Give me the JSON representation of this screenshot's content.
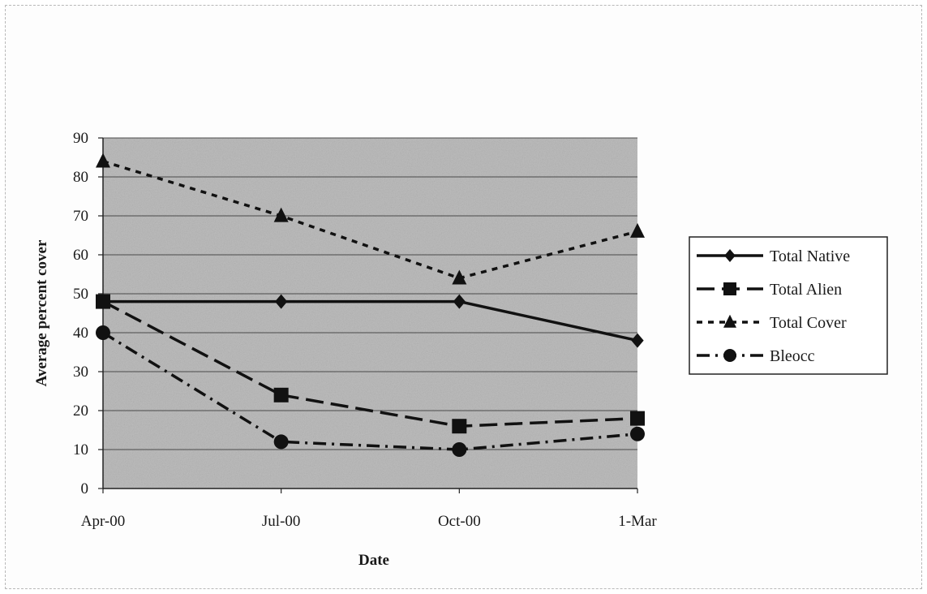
{
  "chart_data": {
    "type": "line",
    "title": "",
    "xlabel": "Date",
    "ylabel": "Average percent cover",
    "categories": [
      "Apr-00",
      "Jul-00",
      "Oct-00",
      "1-Mar"
    ],
    "ylim": [
      0,
      90
    ],
    "yticks": [
      0,
      10,
      20,
      30,
      40,
      50,
      60,
      70,
      80,
      90
    ],
    "grid": true,
    "legend_position": "right",
    "series": [
      {
        "name": "Total Native",
        "values": [
          48,
          48,
          48,
          38
        ],
        "marker": "diamond",
        "dash": "solid"
      },
      {
        "name": "Total Alien",
        "values": [
          48,
          24,
          16,
          18
        ],
        "marker": "square",
        "dash": "long-dash"
      },
      {
        "name": "Total Cover",
        "values": [
          84,
          70,
          54,
          66
        ],
        "marker": "triangle",
        "dash": "short-dash"
      },
      {
        "name": "Bleocc",
        "values": [
          40,
          12,
          10,
          14
        ],
        "marker": "circle",
        "dash": "dash-dot"
      }
    ]
  },
  "colors": {
    "plot_background": "#bdbdbd",
    "gridline": "#4a4a4a",
    "series": "#111111"
  }
}
